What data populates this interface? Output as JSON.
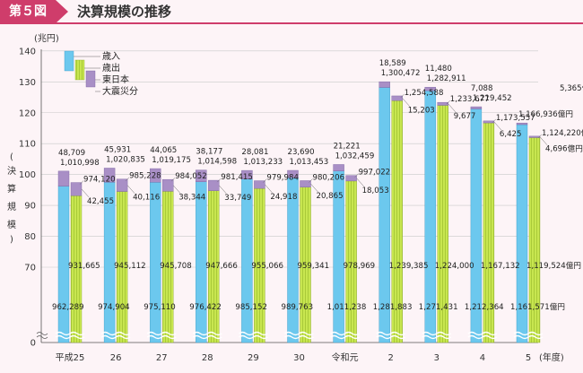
{
  "header": {
    "figure_no": "第５図",
    "title": "決算規模の推移"
  },
  "chart_data": {
    "type": "bar",
    "title": "決算規模の推移",
    "ylabel": "決算規模",
    "yunit": "(兆円)",
    "xunit": "(年度)",
    "ylim": [
      0,
      140
    ],
    "axis_break": true,
    "yticks": [
      "0",
      "70",
      "80",
      "90",
      "100",
      "110",
      "120",
      "130",
      "140"
    ],
    "grid": true,
    "legend_position": "top-left",
    "categories": [
      "平成25",
      "26",
      "27",
      "28",
      "29",
      "30",
      "令和元",
      "2",
      "3",
      "4",
      "5"
    ],
    "series": [
      {
        "name": "歳入",
        "color": "#6cc8ee",
        "values": [
          101.0998,
          102.0835,
          101.9175,
          101.4598,
          101.3233,
          101.3453,
          103.2459,
          130.0472,
          128.2911,
          121.9452,
          116.6936
        ],
        "labels": [
          "1,010,998",
          "1,020,835",
          "1,019,175",
          "1,014,598",
          "1,013,233",
          "1,013,453",
          "1,032,459",
          "1,300,472",
          "1,282,911",
          "1,219,452",
          "1,166,936億円"
        ],
        "ordinary": [
          96.2289,
          97.4904,
          97.511,
          97.6422,
          98.5152,
          98.9763,
          101.1238,
          128.1883,
          127.1431,
          121.2364,
          116.1571
        ],
        "ordinary_labels": [
          "962,289",
          "974,904",
          "975,110",
          "976,422",
          "985,152",
          "989,763",
          "1,011,238",
          "1,281,883",
          "1,271,431",
          "1,212,364",
          "1,161,571億円"
        ],
        "disaster": [
          4.8709,
          4.5931,
          4.4065,
          3.8177,
          2.8081,
          2.369,
          2.1221,
          1.8589,
          1.148,
          0.7088,
          0.5365
        ],
        "disaster_labels": [
          "48,709",
          "45,931",
          "44,065",
          "38,177",
          "28,081",
          "23,690",
          "21,221",
          "18,589",
          "11,480",
          "7,088",
          "5,365億円"
        ]
      },
      {
        "name": "歳出",
        "color": "#c8e650",
        "values": [
          97.412,
          98.5228,
          98.4052,
          98.1415,
          97.9984,
          98.0206,
          99.7022,
          125.4588,
          123.3677,
          117.3557,
          112.422
        ],
        "labels": [
          "974,120",
          "985,228",
          "984,052",
          "981,415",
          "979,984",
          "980,206",
          "997,022",
          "1,254,588",
          "1,233,677",
          "1,173,557",
          "1,124,220億円"
        ],
        "ordinary": [
          93.1665,
          94.5112,
          94.5708,
          94.7666,
          95.5066,
          95.9341,
          97.8969,
          123.9385,
          122.4,
          116.7132,
          111.9524
        ],
        "ordinary_labels": [
          "931,665",
          "945,112",
          "945,708",
          "947,666",
          "955,066",
          "959,341",
          "978,969",
          "1,239,385",
          "1,224,000",
          "1,167,132",
          "1,119,524億円"
        ],
        "disaster": [
          4.2455,
          4.0116,
          3.8344,
          3.3749,
          2.4918,
          2.0865,
          1.8053,
          1.5203,
          0.9677,
          0.6425,
          0.4696
        ],
        "disaster_labels": [
          "42,455",
          "40,116",
          "38,344",
          "33,749",
          "24,918",
          "20,865",
          "18,053",
          "15,203",
          "9,677",
          "6,425",
          "4,696億円"
        ]
      }
    ],
    "legend": [
      {
        "label": "歳入",
        "color": "#6cc8ee"
      },
      {
        "label": "歳出",
        "color": "#c8e650"
      },
      {
        "label": "東日本",
        "color": "#a98fc6"
      },
      {
        "label": "大震災分",
        "color": "#a98fc6"
      }
    ]
  }
}
